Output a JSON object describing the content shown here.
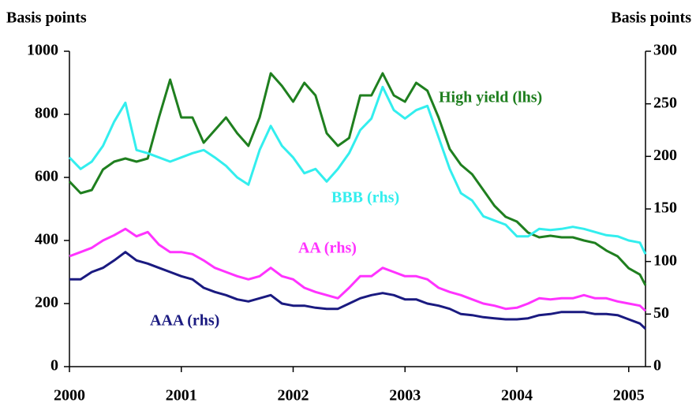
{
  "chart_data": {
    "type": "line",
    "ylabel": "Basis points",
    "y2label": "Basis points",
    "x": [
      2000.0,
      2000.1,
      2000.2,
      2000.3,
      2000.4,
      2000.5,
      2000.6,
      2000.7,
      2000.8,
      2000.9,
      2001.0,
      2001.1,
      2001.2,
      2001.3,
      2001.4,
      2001.5,
      2001.6,
      2001.7,
      2001.8,
      2001.9,
      2002.0,
      2002.1,
      2002.2,
      2002.3,
      2002.4,
      2002.5,
      2002.6,
      2002.7,
      2002.8,
      2002.9,
      2003.0,
      2003.1,
      2003.2,
      2003.3,
      2003.4,
      2003.5,
      2003.6,
      2003.7,
      2003.8,
      2003.9,
      2004.0,
      2004.1,
      2004.2,
      2004.3,
      2004.4,
      2004.5,
      2004.6,
      2004.7,
      2004.8,
      2004.9,
      2005.0,
      2005.1,
      2005.15
    ],
    "xlim": [
      2000,
      2005.15
    ],
    "xticks": [
      2000,
      2001,
      2002,
      2003,
      2004,
      2005
    ],
    "ylim": [
      0,
      1000
    ],
    "yticks": [
      0,
      200,
      400,
      600,
      800,
      1000
    ],
    "y2lim": [
      0,
      300
    ],
    "y2ticks": [
      0,
      50,
      100,
      150,
      200,
      250,
      300
    ],
    "series": [
      {
        "name": "High yield (lhs)",
        "color": "#1f7f1f",
        "values": [
          587,
          550,
          560,
          625,
          650,
          660,
          650,
          660,
          790,
          910,
          790,
          790,
          710,
          750,
          790,
          740,
          700,
          790,
          930,
          890,
          840,
          900,
          860,
          740,
          700,
          725,
          860,
          860,
          930,
          860,
          840,
          900,
          875,
          790,
          690,
          640,
          610,
          560,
          510,
          475,
          460,
          425,
          410,
          415,
          410,
          410,
          400,
          392,
          368,
          350,
          312,
          292,
          258
        ]
      },
      {
        "name": "BBB (rhs)",
        "color": "#33eeee",
        "axis": "y2",
        "values": [
          199,
          188,
          195,
          210,
          233,
          251,
          206,
          203,
          199,
          195,
          199,
          203,
          206,
          199,
          191,
          180,
          173,
          206,
          229,
          210,
          199,
          184,
          188,
          176,
          188,
          203,
          225,
          236,
          266,
          244,
          236,
          244,
          248,
          218,
          188,
          165,
          158,
          143,
          139,
          135,
          124,
          124,
          131,
          130,
          131,
          133,
          131,
          128,
          125,
          124,
          120,
          118,
          107
        ]
      },
      {
        "name": "AA (rhs)",
        "color": "#ff33ff",
        "axis": "y2",
        "values": [
          105,
          109,
          113,
          120,
          125,
          131,
          124,
          128,
          116,
          109,
          109,
          107,
          101,
          94,
          90,
          86,
          83,
          86,
          94,
          86,
          83,
          75,
          71,
          68,
          65,
          75,
          86,
          86,
          94,
          90,
          86,
          86,
          83,
          75,
          71,
          68,
          64,
          60,
          58,
          55,
          56,
          60,
          65,
          64,
          65,
          65,
          68,
          65,
          65,
          62,
          60,
          58,
          53
        ]
      },
      {
        "name": "AAA (rhs)",
        "color": "#1a1a80",
        "axis": "y2",
        "values": [
          83,
          83,
          90,
          94,
          101,
          109,
          101,
          98,
          94,
          90,
          86,
          83,
          75,
          71,
          68,
          64,
          62,
          65,
          68,
          60,
          58,
          58,
          56,
          55,
          55,
          60,
          65,
          68,
          70,
          68,
          64,
          64,
          60,
          58,
          55,
          50,
          49,
          47,
          46,
          45,
          45,
          46,
          49,
          50,
          52,
          52,
          52,
          50,
          50,
          49,
          45,
          41,
          36
        ]
      }
    ]
  }
}
